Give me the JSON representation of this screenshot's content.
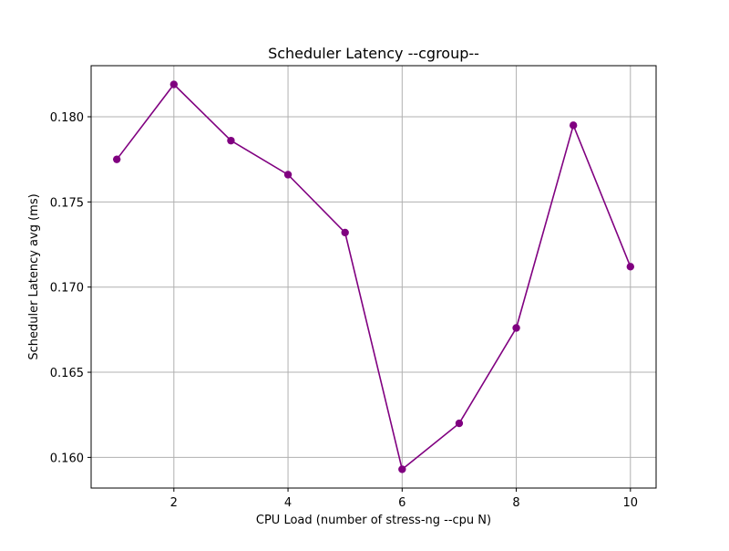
{
  "chart_data": {
    "type": "line",
    "title": "Scheduler Latency --cgroup--",
    "xlabel": "CPU Load (number of stress-ng --cpu N)",
    "ylabel": "Scheduler Latency avg (ms)",
    "x": [
      1,
      2,
      3,
      4,
      5,
      6,
      7,
      8,
      9,
      10
    ],
    "series": [
      {
        "values": [
          0.1775,
          0.1819,
          0.1786,
          0.1766,
          0.1732,
          0.1593,
          0.162,
          0.1676,
          0.1795,
          0.1712
        ],
        "color": "#800080",
        "marker": "circle"
      }
    ],
    "xlim": [
      0.55,
      10.45
    ],
    "ylim": [
      0.1582,
      0.183
    ],
    "xticks": [
      2,
      4,
      6,
      8,
      10
    ],
    "xtick_labels": [
      "2",
      "4",
      "6",
      "8",
      "10"
    ],
    "yticks": [
      0.16,
      0.165,
      0.17,
      0.175,
      0.18
    ],
    "ytick_labels": [
      "0.160",
      "0.165",
      "0.170",
      "0.175",
      "0.180"
    ],
    "grid": true,
    "legend": "none"
  }
}
